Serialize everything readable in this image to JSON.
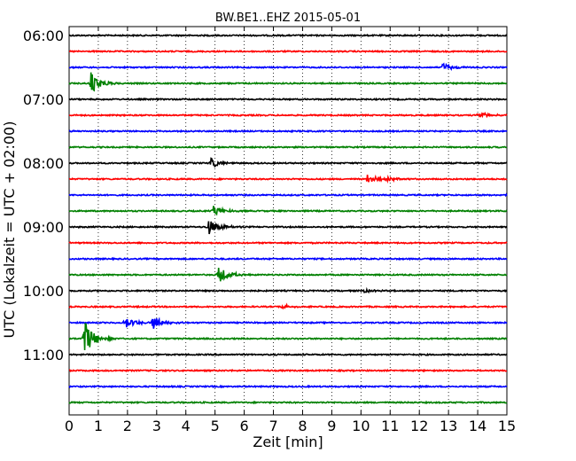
{
  "chart_data": {
    "type": "line",
    "title": "BW.BE1..EHZ 2015-05-01",
    "xlabel": "Zeit  [min]",
    "ylabel": "UTC (Lokalzeit = UTC + 02:00)",
    "xlim": [
      0,
      15
    ],
    "x_ticks": [
      "0",
      "1",
      "2",
      "3",
      "4",
      "5",
      "6",
      "7",
      "8",
      "9",
      "10",
      "11",
      "12",
      "13",
      "14",
      "15"
    ],
    "y_tick_labels": [
      "06:00",
      "07:00",
      "08:00",
      "09:00",
      "10:00",
      "11:00"
    ],
    "grid": "vertical dotted",
    "series": [
      {
        "start": "06:00",
        "color": "#000000",
        "events": []
      },
      {
        "start": "06:15",
        "color": "#ff0000",
        "events": []
      },
      {
        "start": "06:30",
        "color": "#0000ff",
        "events": [
          {
            "minute": 12.8,
            "amp": 0.7
          }
        ]
      },
      {
        "start": "06:45",
        "color": "#008000",
        "events": [
          {
            "minute": 0.75,
            "amp": 1.8
          }
        ]
      },
      {
        "start": "07:00",
        "color": "#000000",
        "events": []
      },
      {
        "start": "07:15",
        "color": "#ff0000",
        "events": [
          {
            "minute": 14.0,
            "amp": 0.6
          }
        ]
      },
      {
        "start": "07:30",
        "color": "#0000ff",
        "events": []
      },
      {
        "start": "07:45",
        "color": "#008000",
        "events": []
      },
      {
        "start": "08:00",
        "color": "#000000",
        "events": [
          {
            "minute": 4.85,
            "amp": 0.8
          }
        ]
      },
      {
        "start": "08:15",
        "color": "#ff0000",
        "events": [
          {
            "minute": 10.2,
            "amp": 0.8
          },
          {
            "minute": 10.9,
            "amp": 0.3
          }
        ]
      },
      {
        "start": "08:30",
        "color": "#0000ff",
        "events": []
      },
      {
        "start": "08:45",
        "color": "#008000",
        "events": [
          {
            "minute": 4.95,
            "amp": 0.9
          }
        ]
      },
      {
        "start": "09:00",
        "color": "#000000",
        "events": [
          {
            "minute": 4.75,
            "amp": 1.4
          }
        ]
      },
      {
        "start": "09:15",
        "color": "#ff0000",
        "events": []
      },
      {
        "start": "09:30",
        "color": "#0000ff",
        "events": []
      },
      {
        "start": "09:45",
        "color": "#008000",
        "events": [
          {
            "minute": 5.1,
            "amp": 1.5
          }
        ]
      },
      {
        "start": "10:00",
        "color": "#000000",
        "events": [
          {
            "minute": 10.05,
            "amp": 0.3
          }
        ]
      },
      {
        "start": "10:15",
        "color": "#ff0000",
        "events": [
          {
            "minute": 7.3,
            "amp": 0.35
          }
        ]
      },
      {
        "start": "10:30",
        "color": "#0000ff",
        "events": [
          {
            "minute": 1.9,
            "amp": 1.0
          },
          {
            "minute": 2.85,
            "amp": 1.1
          }
        ]
      },
      {
        "start": "10:45",
        "color": "#008000",
        "events": [
          {
            "minute": 0.5,
            "amp": 3.0
          }
        ]
      },
      {
        "start": "11:00",
        "color": "#000000",
        "events": []
      },
      {
        "start": "11:15",
        "color": "#ff0000",
        "events": []
      },
      {
        "start": "11:30",
        "color": "#0000ff",
        "events": []
      },
      {
        "start": "11:45",
        "color": "#008000",
        "events": []
      }
    ]
  }
}
